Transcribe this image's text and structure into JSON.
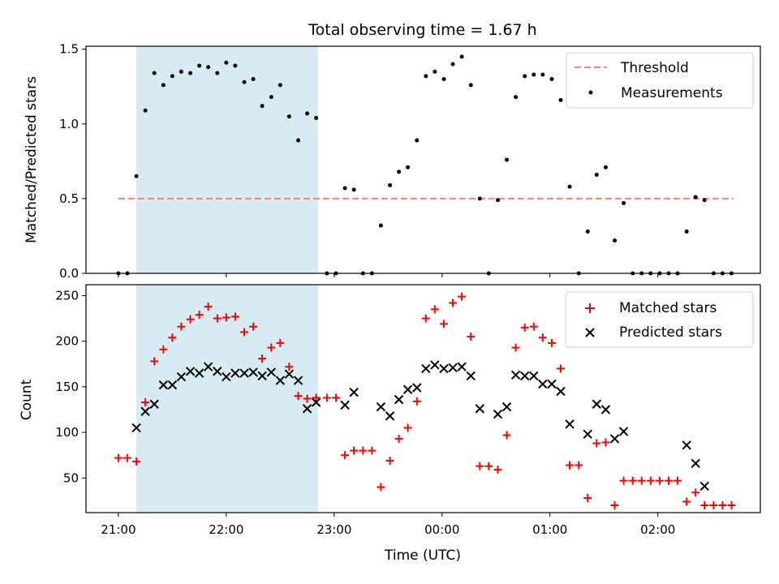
{
  "chart_data": [
    {
      "type": "scatter",
      "title": "Total observing time = 1.67 h",
      "xlabel": "",
      "ylabel": "Matched/Predicted stars",
      "ylim": [
        0,
        1.52
      ],
      "yticks": [
        "0.0",
        "0.5",
        "1.0",
        "1.5"
      ],
      "ytick_values": [
        0,
        0.5,
        1.0,
        1.5
      ],
      "grid": false,
      "legend_position": "upper right",
      "shaded_span": {
        "x_start": 21.167,
        "x_end": 22.85,
        "color": "#add8e6"
      },
      "threshold": {
        "name": "Threshold",
        "value": 0.5,
        "x_start": 21.0,
        "x_end": 26.7,
        "color": "#ff7f7f"
      },
      "series": [
        {
          "name": "Measurements",
          "color": "#000000",
          "marker": "dot",
          "x": [
            21.0,
            21.083,
            21.167,
            21.25,
            21.333,
            21.417,
            21.5,
            21.583,
            21.667,
            21.75,
            21.833,
            21.917,
            22.0,
            22.083,
            22.167,
            22.25,
            22.333,
            22.417,
            22.5,
            22.583,
            22.667,
            22.75,
            22.833,
            22.933,
            23.017,
            23.1,
            23.183,
            23.267,
            23.35,
            23.433,
            23.517,
            23.6,
            23.683,
            23.767,
            23.85,
            23.933,
            24.017,
            24.1,
            24.183,
            24.267,
            24.35,
            24.433,
            24.517,
            24.6,
            24.683,
            24.767,
            24.85,
            24.933,
            25.017,
            25.1,
            25.183,
            25.267,
            25.35,
            25.433,
            25.517,
            25.6,
            25.683,
            25.767,
            25.85,
            25.933,
            26.017,
            26.1,
            26.183,
            26.267,
            26.35,
            26.433,
            26.517,
            26.6,
            26.683
          ],
          "y": [
            0,
            0,
            0.65,
            1.09,
            1.34,
            1.26,
            1.32,
            1.35,
            1.34,
            1.39,
            1.38,
            1.34,
            1.41,
            1.39,
            1.28,
            1.3,
            1.12,
            1.18,
            1.26,
            1.05,
            0.89,
            1.07,
            1.04,
            0,
            0,
            0.57,
            0.56,
            0,
            0,
            0.32,
            0.59,
            0.68,
            0.71,
            0.89,
            1.32,
            1.35,
            1.3,
            1.4,
            1.45,
            1.26,
            0.5,
            0,
            0.49,
            0.76,
            1.18,
            1.32,
            1.33,
            1.33,
            1.3,
            1.16,
            0.58,
            0,
            0.28,
            0.66,
            0.71,
            0.22,
            0.47,
            0,
            0,
            0,
            0,
            0,
            0,
            0.28,
            0.51,
            0.49,
            0,
            0,
            0
          ]
        }
      ]
    },
    {
      "type": "scatter",
      "title": "",
      "xlabel": "Time (UTC)",
      "ylabel": "Count",
      "ylim": [
        12,
        262
      ],
      "yticks": [
        "50",
        "100",
        "150",
        "200",
        "250"
      ],
      "ytick_values": [
        50,
        100,
        150,
        200,
        250
      ],
      "xlim": [
        20.7,
        26.95
      ],
      "xticks": [
        "21:00",
        "22:00",
        "23:00",
        "00:00",
        "01:00",
        "02:00"
      ],
      "xtick_values": [
        21,
        22,
        23,
        24,
        25,
        26
      ],
      "grid": false,
      "legend_position": "upper right",
      "shaded_span": {
        "x_start": 21.167,
        "x_end": 22.85,
        "color": "#add8e6"
      },
      "series": [
        {
          "name": "Matched stars",
          "color": "#ff0000",
          "marker": "plus",
          "x": [
            21.0,
            21.083,
            21.167,
            21.25,
            21.333,
            21.417,
            21.5,
            21.583,
            21.667,
            21.75,
            21.833,
            21.917,
            22.0,
            22.083,
            22.167,
            22.25,
            22.333,
            22.417,
            22.5,
            22.583,
            22.667,
            22.75,
            22.833,
            22.933,
            23.017,
            23.1,
            23.183,
            23.267,
            23.35,
            23.433,
            23.517,
            23.6,
            23.683,
            23.767,
            23.85,
            23.933,
            24.017,
            24.1,
            24.183,
            24.267,
            24.35,
            24.433,
            24.517,
            24.6,
            24.683,
            24.767,
            24.85,
            24.933,
            25.017,
            25.1,
            25.183,
            25.267,
            25.35,
            25.433,
            25.517,
            25.6,
            25.683,
            25.767,
            25.85,
            25.933,
            26.017,
            26.1,
            26.183,
            26.267,
            26.35,
            26.433,
            26.517,
            26.6,
            26.683
          ],
          "y": [
            72,
            72,
            68,
            133,
            178,
            191,
            204,
            216,
            224,
            229,
            238,
            225,
            226,
            227,
            210,
            216,
            181,
            193,
            198,
            172,
            140,
            137,
            138,
            138,
            138,
            75,
            80,
            80,
            80,
            40,
            69,
            93,
            105,
            134,
            225,
            235,
            219,
            242,
            249,
            205,
            63,
            63,
            59,
            97,
            193,
            215,
            216,
            204,
            198,
            170,
            64,
            64,
            28,
            88,
            89,
            20,
            47,
            47,
            47,
            47,
            47,
            47,
            47,
            24,
            34,
            20,
            20,
            20,
            20
          ]
        },
        {
          "name": "Predicted stars",
          "color": "#000000",
          "marker": "x",
          "x": [
            21.167,
            21.25,
            21.333,
            21.417,
            21.5,
            21.583,
            21.667,
            21.75,
            21.833,
            21.917,
            22.0,
            22.083,
            22.167,
            22.25,
            22.333,
            22.417,
            22.5,
            22.583,
            22.667,
            22.75,
            22.833,
            23.1,
            23.183,
            23.433,
            23.517,
            23.6,
            23.683,
            23.767,
            23.85,
            23.933,
            24.017,
            24.1,
            24.183,
            24.267,
            24.35,
            24.517,
            24.6,
            24.683,
            24.767,
            24.85,
            24.933,
            25.017,
            25.1,
            25.183,
            25.35,
            25.433,
            25.517,
            25.6,
            25.683,
            26.267,
            26.35,
            26.433
          ],
          "y": [
            105,
            123,
            131,
            152,
            152,
            161,
            167,
            165,
            172,
            167,
            161,
            165,
            165,
            166,
            162,
            166,
            157,
            164,
            157,
            126,
            133,
            130,
            144,
            128,
            118,
            136,
            147,
            149,
            170,
            174,
            170,
            171,
            172,
            162,
            126,
            120,
            128,
            163,
            162,
            162,
            153,
            153,
            145,
            109,
            98,
            131,
            125,
            93,
            101,
            86,
            66,
            41
          ]
        }
      ]
    }
  ]
}
